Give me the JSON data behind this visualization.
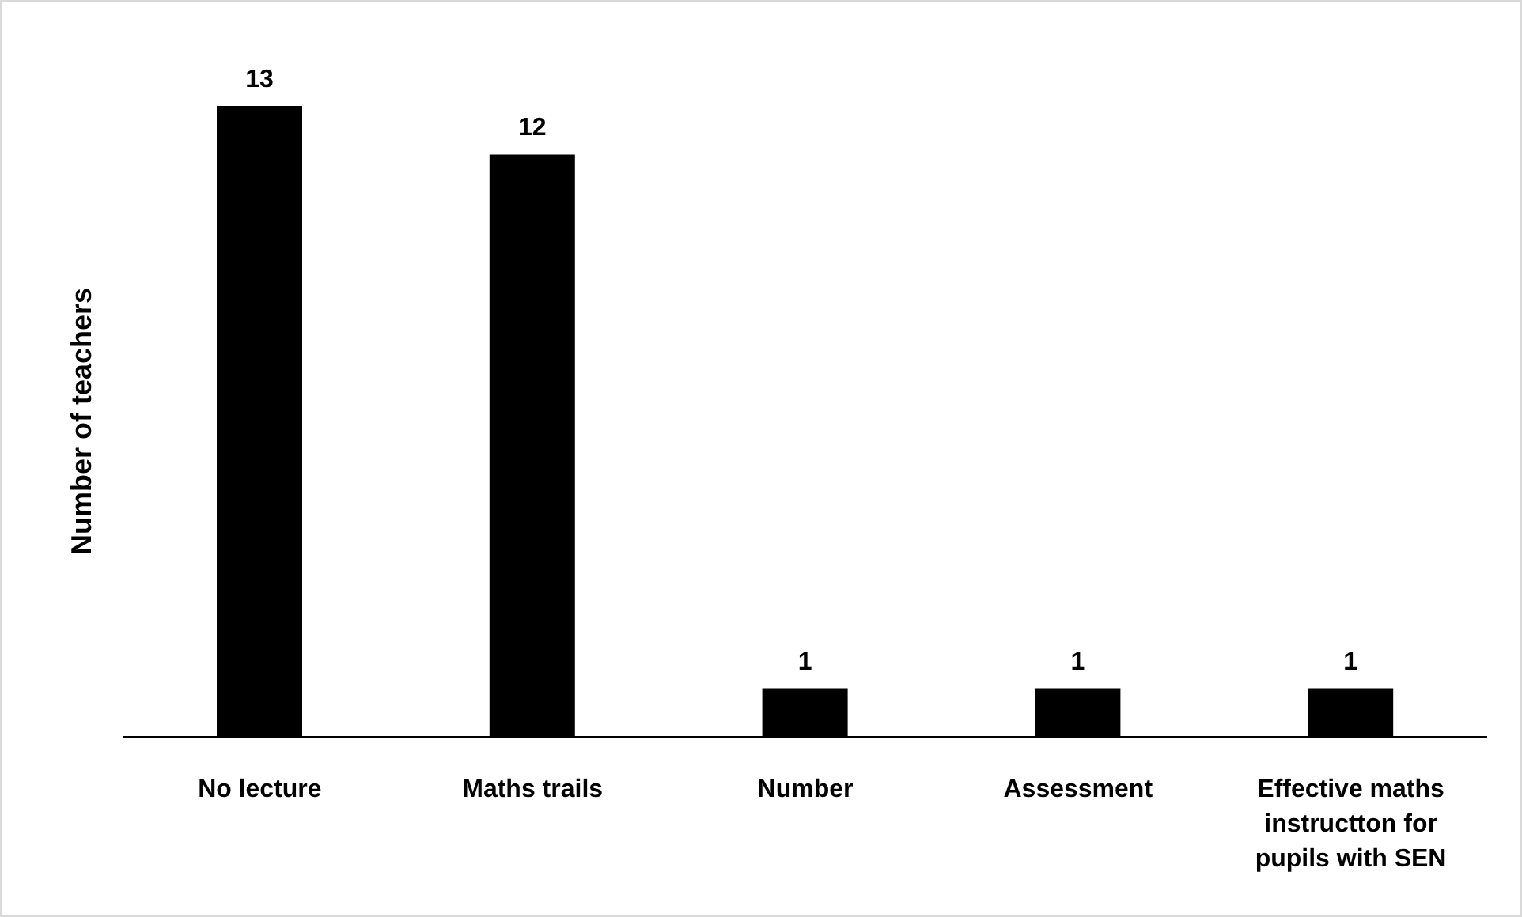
{
  "chart_data": {
    "type": "bar",
    "ylabel": "Number of teachers",
    "categories": [
      "No lecture",
      "Maths trails",
      "Number",
      "Assessment",
      "Effective maths instructton for pupils with SEN"
    ],
    "values": [
      13,
      12,
      1,
      1,
      1
    ],
    "color": "#000000",
    "data_labels": true
  }
}
